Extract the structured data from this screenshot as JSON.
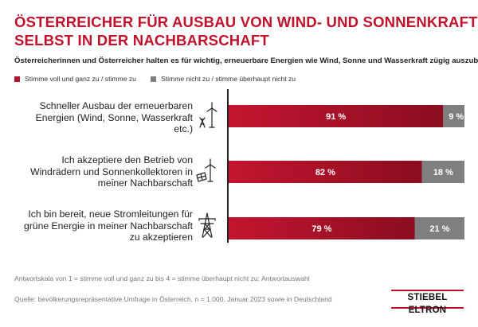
{
  "header": {
    "title_line1": "ÖSTERREICHER FÜR AUSBAU VON WIND- UND SONNENKRAFT –",
    "title_line2": "SELBST IN DER NACHBARSCHAFT",
    "subtitle": "Österreicherinnen und Österreicher halten es für wichtig, erneuerbare Energien wie Wind, Sonne und Wasserkraft zügig auszubauen."
  },
  "colors": {
    "agree": "#b3122a",
    "agree_dark": "#8a0d1f",
    "disagree": "#7f7f7f",
    "brand": "#c0122b"
  },
  "chart_data": {
    "type": "bar",
    "orientation": "horizontal",
    "stacked": true,
    "categories": [
      "Schneller Ausbau der erneuerbaren Energien (Wind, Sonne, Wasserkraft etc.)",
      "Ich akzeptiere den Betrieb von Windrädern und Sonnenkollektoren in meiner Nachbarschaft",
      "Ich bin bereit, neue Stromleitungen für grüne Energie in meiner Nachbarschaft zu akzeptieren"
    ],
    "category_lines": [
      [
        "Schneller Ausbau der erneuerbaren",
        "Energien (Wind, Sonne, Wasserkraft",
        "etc.)"
      ],
      [
        "Ich akzeptiere den Betrieb von",
        "Windrädern und Sonnenkollektoren in",
        "meiner Nachbarschaft"
      ],
      [
        "Ich bin bereit, neue Stromleitungen für",
        "grüne Energie in meiner Nachbarschaft",
        "zu akzeptieren"
      ]
    ],
    "series": [
      {
        "name": "Stimme voll und ganz zu / stimme zu",
        "values": [
          91,
          82,
          79
        ],
        "labels": [
          "91 %",
          "82 %",
          "79 %"
        ]
      },
      {
        "name": "Stimme nicht zu / stimme überhaupt nicht zu",
        "values": [
          9,
          18,
          21
        ],
        "labels": [
          "9 %",
          "18 %",
          "21 %"
        ]
      }
    ],
    "xlim": [
      0,
      100
    ],
    "legend_position": "top-left"
  },
  "icons": [
    "wind-turbine-icon",
    "wind-solar-panel-icon",
    "power-pylon-icon"
  ],
  "footer": {
    "note": "Antwortskala von 1 = stimme voll und ganz zu bis 4 = stimme überhaupt nicht zu; Antwortauswahl",
    "source": "Quelle: bevölkerungsrepräsentative Umfrage in Österreich, n = 1.000, Januar 2023 sowie in Deutschland",
    "brand": "STIEBEL ELTRON"
  }
}
